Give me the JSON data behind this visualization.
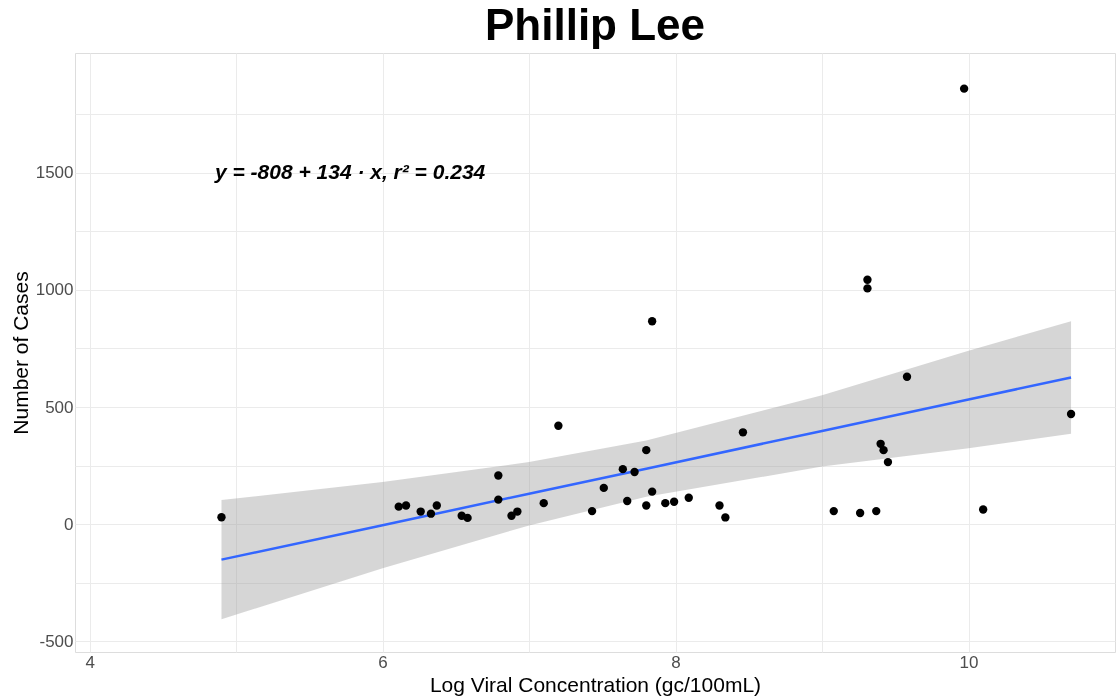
{
  "chart_data": {
    "type": "scatter",
    "title": "Phillip Lee",
    "xlabel": "Log Viral Concentration (gc/100mL)",
    "ylabel": "Number of Cases",
    "annotations": [
      "y = -808 + 134 · x,  r² = 0.234"
    ],
    "xlim": [
      3.9,
      11.0
    ],
    "ylim": [
      -545,
      2010
    ],
    "xticks": [
      4,
      {
        "value": 5,
        "label": null
      },
      6,
      {
        "value": 7,
        "label": null
      },
      8,
      {
        "value": 9,
        "label": null
      },
      10
    ],
    "yticks": [
      -500,
      {
        "value": -250,
        "label": null
      },
      0,
      {
        "value": 250,
        "label": null
      },
      500,
      {
        "value": 750,
        "label": null
      },
      1000,
      {
        "value": 1250,
        "label": null
      },
      1500,
      {
        "value": 1750,
        "label": null
      }
    ],
    "grid": true,
    "series": [
      {
        "color": "#000000",
        "marker": "circle",
        "x": [
          4.9,
          6.11,
          6.16,
          6.26,
          6.33,
          6.37,
          6.54,
          6.58,
          6.79,
          6.79,
          6.88,
          6.92,
          7.1,
          7.2,
          7.43,
          7.51,
          7.64,
          7.67,
          7.72,
          7.8,
          7.84,
          7.8,
          7.84,
          7.93,
          7.99,
          8.09,
          8.3,
          8.34,
          8.46,
          9.08,
          9.26,
          9.31,
          9.31,
          9.37,
          9.4,
          9.42,
          9.45,
          9.58,
          9.97,
          10.1,
          10.7
        ],
        "values": [
          30,
          75,
          80,
          54,
          45,
          80,
          36,
          27,
          208,
          105,
          36,
          54,
          90,
          420,
          56,
          155,
          235,
          99,
          223,
          316,
          866,
          80,
          139,
          90,
          96,
          113,
          80,
          29,
          392,
          56,
          48,
          1043,
          1006,
          56,
          343,
          316,
          265,
          629,
          1858,
          63,
          470
        ]
      },
      {
        "type": "line",
        "color": "#3366ff",
        "x": [
          4.9,
          6,
          7,
          7.8,
          9,
          10,
          10.7
        ],
        "values": [
          -151,
          -4,
          130,
          237,
          398,
          532,
          626
        ],
        "lower": [
          -405,
          -188,
          -5,
          117,
          246,
          324,
          386
        ],
        "upper": [
          103,
          180,
          265,
          357,
          550,
          740,
          866
        ]
      }
    ]
  }
}
